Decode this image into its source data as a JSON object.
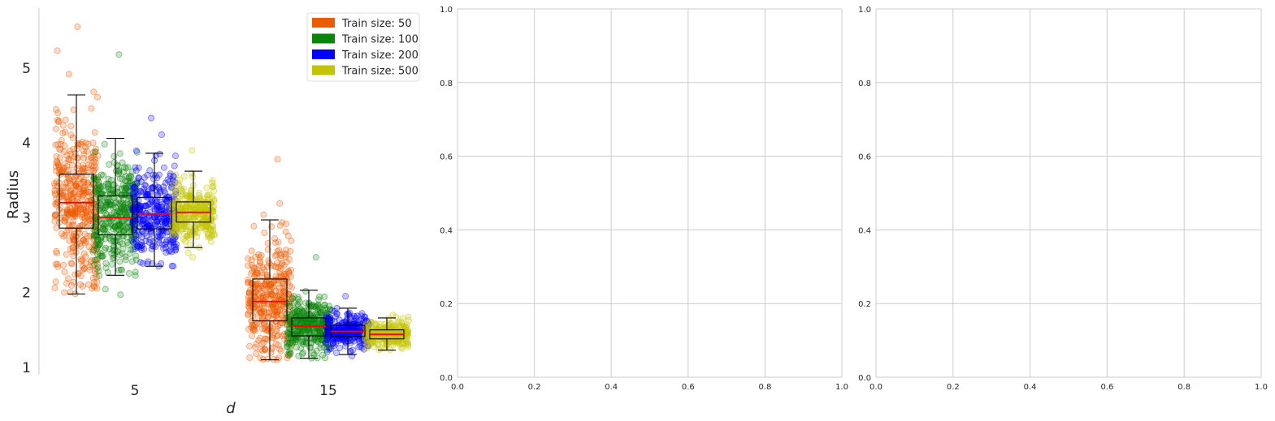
{
  "chart_data": [
    {
      "type": "box",
      "title": "",
      "xlabel": "d",
      "ylabel": "Radius",
      "categories": [
        "5",
        "15"
      ],
      "yticks": [
        1,
        2,
        3,
        4,
        5
      ],
      "ylim": [
        0.9,
        5.8
      ],
      "grid": false,
      "jitter_points": true,
      "legend_position": "top-right",
      "series": [
        {
          "name": "Train size: 50",
          "color": "#ee5a00",
          "boxes": [
            {
              "whislo": 1.98,
              "q1": 2.86,
              "median": 3.2,
              "q3": 3.58,
              "whishi": 4.64,
              "points_min": 1.98,
              "points_max": 5.55
            },
            {
              "whislo": 1.1,
              "q1": 1.62,
              "median": 1.88,
              "q3": 2.18,
              "whishi": 2.97,
              "points_min": 1.1,
              "points_max": 3.78
            }
          ]
        },
        {
          "name": "Train size: 100",
          "color": "#0a840a",
          "boxes": [
            {
              "whislo": 2.23,
              "q1": 2.77,
              "median": 3.0,
              "q3": 3.29,
              "whishi": 4.06,
              "points_min": 1.97,
              "points_max": 5.18
            },
            {
              "whislo": 1.12,
              "q1": 1.42,
              "median": 1.55,
              "q3": 1.66,
              "whishi": 2.03,
              "points_min": 1.12,
              "points_max": 2.47
            }
          ]
        },
        {
          "name": "Train size: 200",
          "color": "#0000ff",
          "boxes": [
            {
              "whislo": 2.35,
              "q1": 2.85,
              "median": 3.05,
              "q3": 3.27,
              "whishi": 3.86,
              "points_min": 2.35,
              "points_max": 4.33
            },
            {
              "whislo": 1.17,
              "q1": 1.41,
              "median": 1.48,
              "q3": 1.56,
              "whishi": 1.79,
              "points_min": 1.15,
              "points_max": 1.95
            }
          ]
        },
        {
          "name": "Train size: 500",
          "color": "#c3c300",
          "boxes": [
            {
              "whislo": 2.6,
              "q1": 2.94,
              "median": 3.07,
              "q3": 3.21,
              "whishi": 3.62,
              "points_min": 2.47,
              "points_max": 3.9
            },
            {
              "whislo": 1.23,
              "q1": 1.38,
              "median": 1.44,
              "q3": 1.5,
              "whishi": 1.66,
              "points_min": 1.23,
              "points_max": 1.7
            }
          ]
        }
      ],
      "median_color": "#ff0000"
    },
    {
      "type": "scatter",
      "title": "",
      "xlabel": "",
      "ylabel": "",
      "xlim": [
        0,
        1
      ],
      "ylim": [
        0,
        1
      ],
      "xticks": [
        "0.0",
        "0.2",
        "0.4",
        "0.6",
        "0.8",
        "1.0"
      ],
      "yticks": [
        "0.0",
        "0.2",
        "0.4",
        "0.6",
        "0.8",
        "1.0"
      ],
      "grid": true,
      "series": []
    },
    {
      "type": "scatter",
      "title": "",
      "xlabel": "",
      "ylabel": "",
      "xlim": [
        0,
        1
      ],
      "ylim": [
        0,
        1
      ],
      "xticks": [
        "0.0",
        "0.2",
        "0.4",
        "0.6",
        "0.8",
        "1.0"
      ],
      "yticks": [
        "0.0",
        "0.2",
        "0.4",
        "0.6",
        "0.8",
        "1.0"
      ],
      "grid": true,
      "series": []
    }
  ]
}
